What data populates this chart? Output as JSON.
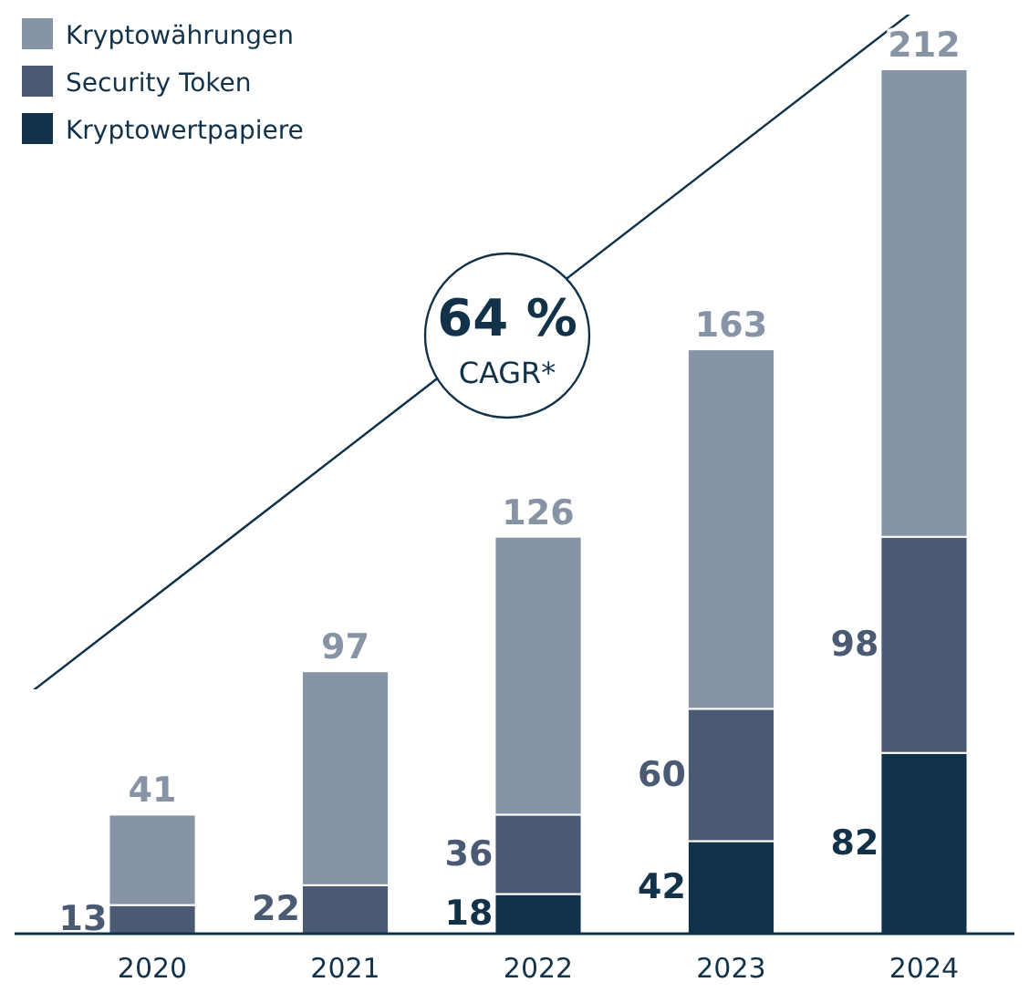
{
  "chart_data": {
    "type": "bar",
    "stacked": true,
    "data_labels": true,
    "legend": "top left",
    "categories": [
      "2020",
      "2021",
      "2022",
      "2023",
      "2024"
    ],
    "series": [
      {
        "name": "Kryptowertpapiere",
        "color": "#12324a",
        "values": [
          null,
          null,
          18,
          42,
          82
        ]
      },
      {
        "name": "Security Token",
        "color": "#4a5a73",
        "values": [
          13,
          22,
          36,
          60,
          98
        ]
      },
      {
        "name": "Kryptowährungen",
        "color": "#8794a6",
        "values": [
          41,
          97,
          126,
          163,
          212
        ]
      }
    ],
    "annotations": [
      "64 %",
      "CAGR*"
    ]
  }
}
